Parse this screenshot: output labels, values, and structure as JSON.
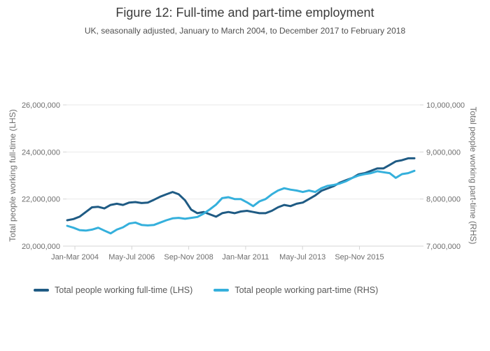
{
  "title": "Figure 12: Full-time and part-time employment",
  "subtitle": "UK, seasonally adjusted, January to March 2004, to December 2017 to February 2018",
  "colors": {
    "fulltime_line": "#1f5b84",
    "parttime_line": "#35b0dc",
    "gridline": "#e8e8e8",
    "axis_line": "#d4d4d4",
    "tick_text": "#6e6e6e"
  },
  "legend": {
    "items": [
      {
        "label": "Total people working full-time (LHS)",
        "color": "#1f5b84"
      },
      {
        "label": "Total people working part-time (RHS)",
        "color": "#35b0dc"
      }
    ]
  },
  "chart_data": {
    "type": "line",
    "title": "Figure 12: Full-time and part-time employment",
    "subtitle": "UK, seasonally adjusted, January to March 2004, to December 2017 to February 2018",
    "units": "millions of people",
    "grid": true,
    "legend_position": "bottom",
    "left_axis": {
      "label": "Total people working full-time (LHS)",
      "min_millions": 20,
      "max_millions": 26,
      "tick_values_millions": [
        26,
        24,
        22,
        20
      ],
      "tick_labels": [
        "26,000,000",
        "24,000,000",
        "22,000,000",
        "20,000,000"
      ]
    },
    "right_axis": {
      "label": "Total people working part-time (RHS)",
      "min_millions": 7,
      "max_millions": 10,
      "tick_values_millions": [
        10,
        9,
        8,
        7
      ],
      "tick_labels": [
        "10,000,000",
        "9,000,000",
        "8,000,000",
        "7,000,000"
      ]
    },
    "x_tick_labels": [
      "Jan-Mar 2004",
      "May-Jul 2006",
      "Sep-Nov 2008",
      "Jan-Mar 2011",
      "May-Jul 2013",
      "Sep-Nov 2015"
    ],
    "x": [
      "Jan-Mar 2004",
      "Apr-Jun 2004",
      "Jul-Sep 2004",
      "Oct-Dec 2004",
      "Jan-Mar 2005",
      "Apr-Jun 2005",
      "Jul-Sep 2005",
      "Oct-Dec 2005",
      "Jan-Mar 2006",
      "Apr-Jun 2006",
      "Jul-Sep 2006",
      "Oct-Dec 2006",
      "Jan-Mar 2007",
      "Apr-Jun 2007",
      "Jul-Sep 2007",
      "Oct-Dec 2007",
      "Jan-Mar 2008",
      "Apr-Jun 2008",
      "Jul-Sep 2008",
      "Oct-Dec 2008",
      "Jan-Mar 2009",
      "Apr-Jun 2009",
      "Jul-Sep 2009",
      "Oct-Dec 2009",
      "Jan-Mar 2010",
      "Apr-Jun 2010",
      "Jul-Sep 2010",
      "Oct-Dec 2010",
      "Jan-Mar 2011",
      "Apr-Jun 2011",
      "Jul-Sep 2011",
      "Oct-Dec 2011",
      "Jan-Mar 2012",
      "Apr-Jun 2012",
      "Jul-Sep 2012",
      "Oct-Dec 2012",
      "Jan-Mar 2013",
      "Apr-Jun 2013",
      "Jul-Sep 2013",
      "Oct-Dec 2013",
      "Jan-Mar 2014",
      "Apr-Jun 2014",
      "Jul-Sep 2014",
      "Oct-Dec 2014",
      "Jan-Mar 2015",
      "Apr-Jun 2015",
      "Jul-Sep 2015",
      "Oct-Dec 2015",
      "Jan-Mar 2016",
      "Apr-Jun 2016",
      "Jul-Sep 2016",
      "Oct-Dec 2016",
      "Jan-Mar 2017",
      "Apr-Jun 2017",
      "Jul-Sep 2017",
      "Oct-Dec 2017",
      "Dec-Feb 2018"
    ],
    "series": [
      {
        "name": "Total people working full-time (LHS)",
        "data_name": "fulltime-line",
        "axis": "left",
        "color": "#1f5b84",
        "values_millions": [
          21.1,
          21.15,
          21.25,
          21.45,
          21.65,
          21.67,
          21.6,
          21.75,
          21.8,
          21.75,
          21.85,
          21.87,
          21.83,
          21.85,
          21.97,
          22.1,
          22.2,
          22.3,
          22.2,
          21.95,
          21.55,
          21.4,
          21.45,
          21.35,
          21.25,
          21.4,
          21.45,
          21.4,
          21.47,
          21.5,
          21.45,
          21.4,
          21.4,
          21.5,
          21.65,
          21.75,
          21.7,
          21.8,
          21.85,
          22.0,
          22.15,
          22.35,
          22.45,
          22.55,
          22.7,
          22.8,
          22.9,
          23.05,
          23.1,
          23.2,
          23.3,
          23.3,
          23.45,
          23.6,
          23.65,
          23.73,
          23.73
        ]
      },
      {
        "name": "Total people working part-time (RHS)",
        "data_name": "parttime-line",
        "axis": "right",
        "color": "#35b0dc",
        "values_millions": [
          7.43,
          7.39,
          7.34,
          7.33,
          7.35,
          7.39,
          7.33,
          7.27,
          7.35,
          7.4,
          7.48,
          7.5,
          7.45,
          7.44,
          7.45,
          7.5,
          7.55,
          7.59,
          7.6,
          7.58,
          7.6,
          7.62,
          7.69,
          7.78,
          7.88,
          8.02,
          8.04,
          8.0,
          8.0,
          7.93,
          7.85,
          7.95,
          8.0,
          8.1,
          8.18,
          8.23,
          8.2,
          8.18,
          8.15,
          8.18,
          8.15,
          8.23,
          8.28,
          8.3,
          8.33,
          8.38,
          8.45,
          8.5,
          8.53,
          8.55,
          8.59,
          8.57,
          8.55,
          8.45,
          8.53,
          8.55,
          8.6
        ]
      }
    ]
  }
}
